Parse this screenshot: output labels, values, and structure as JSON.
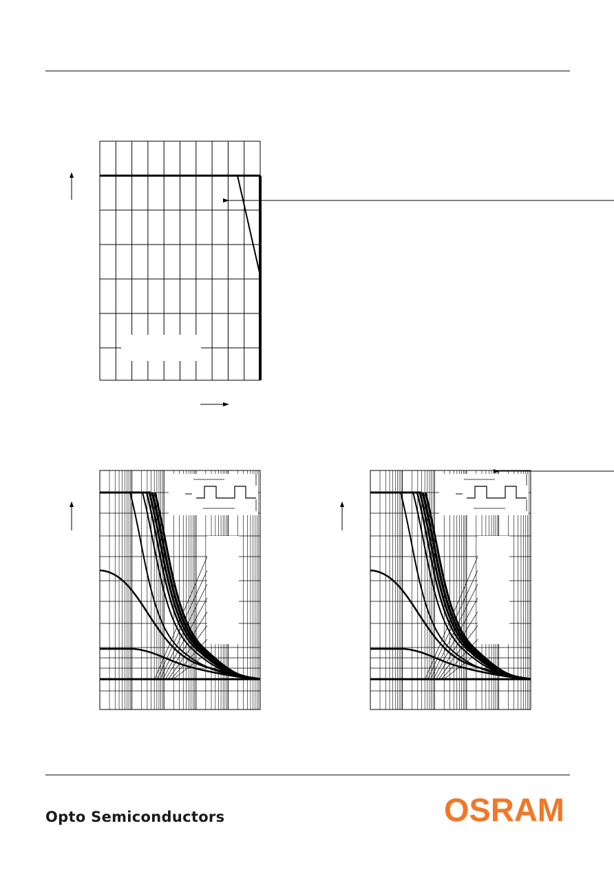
{
  "footer": {
    "company": "Opto Semiconductors",
    "logo": "OSRAM"
  }
}
